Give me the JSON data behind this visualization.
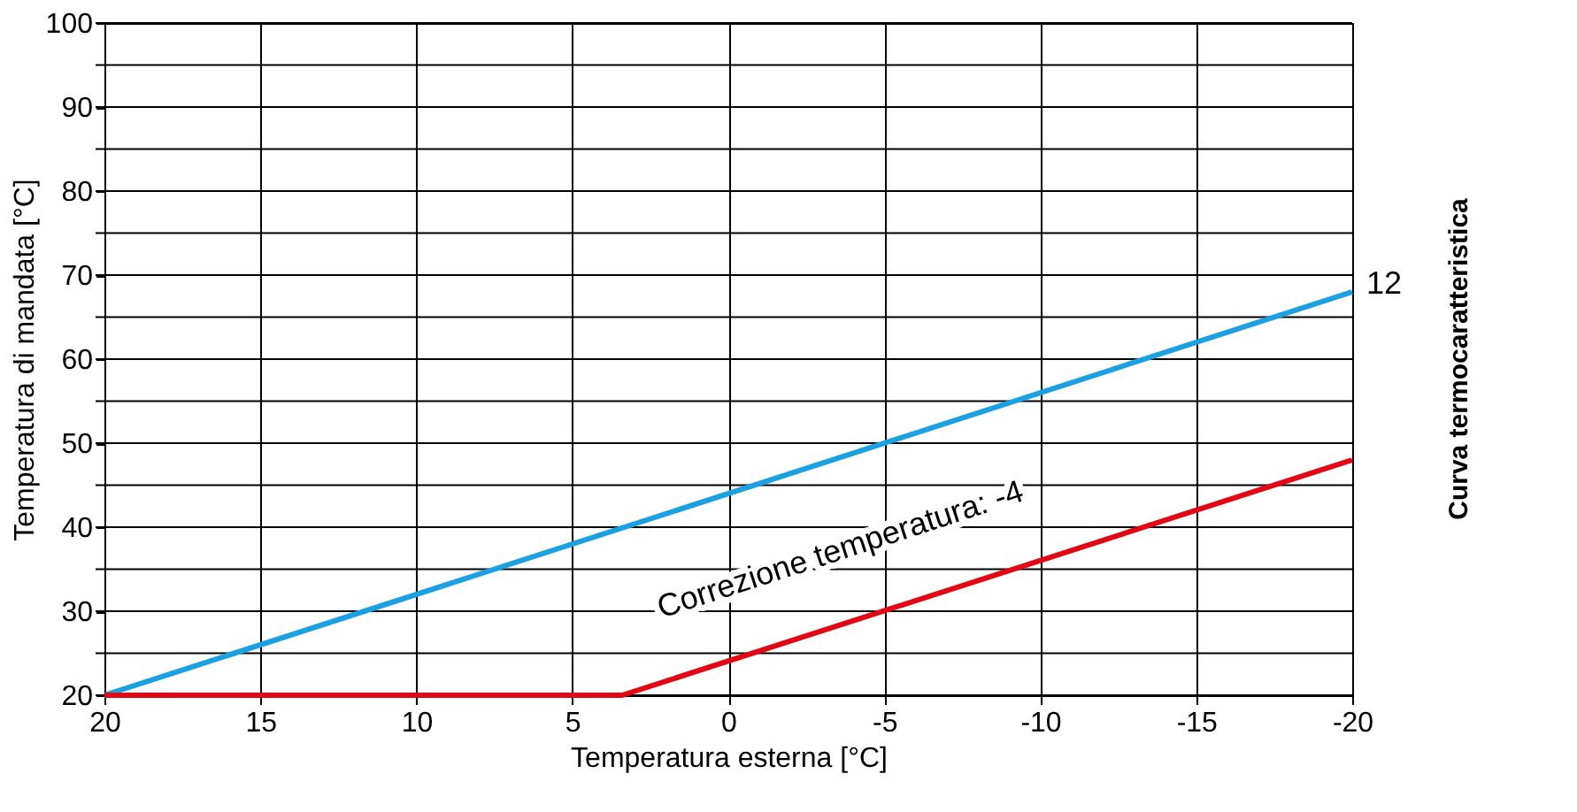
{
  "chart_data": {
    "type": "line",
    "xlabel": "Temperatura esterna [°C]",
    "ylabel": "Temperatura di mandata [°C]",
    "y2label": "Curva termocaratteristica",
    "series": [
      {
        "name": "12",
        "color": "#1ba1e2",
        "x": [
          20,
          -20
        ],
        "values": [
          20,
          68
        ]
      },
      {
        "color": "#e30613",
        "x": [
          20,
          3.4,
          -20
        ],
        "values": [
          20,
          20,
          48
        ]
      }
    ],
    "annotations": [
      "Correzione temperatura: -4"
    ],
    "xlim": [
      20,
      -20
    ],
    "xticks": [
      20,
      15,
      10,
      5,
      0,
      -5,
      -10,
      -15,
      -20
    ],
    "ylim": [
      20,
      100
    ],
    "yticks": [
      20,
      {
        "value": 25,
        "label": null
      },
      30,
      {
        "value": 35,
        "label": null
      },
      40,
      {
        "value": 45,
        "label": null
      },
      50,
      {
        "value": 55,
        "label": null
      },
      60,
      {
        "value": 65,
        "label": null
      },
      70,
      {
        "value": 75,
        "label": null
      },
      80,
      {
        "value": 85,
        "label": null
      },
      90,
      {
        "value": 95,
        "label": null
      },
      100
    ],
    "grid": true,
    "marker": "none",
    "line_style": "solid"
  }
}
